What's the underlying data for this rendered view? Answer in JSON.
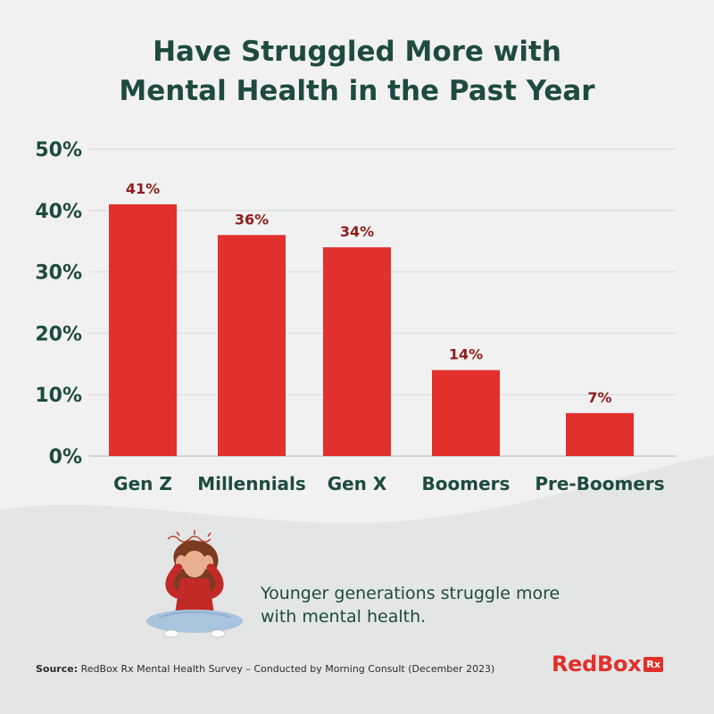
{
  "title_lines": [
    "Have Struggled More with",
    "Mental Health in the Past Year"
  ],
  "chart_data": {
    "type": "bar",
    "categories": [
      "Gen Z",
      "Millennials",
      "Gen X",
      "Boomers",
      "Pre-Boomers"
    ],
    "values": [
      41,
      36,
      34,
      14,
      7
    ],
    "data_labels": [
      "41%",
      "36%",
      "34%",
      "14%",
      "7%"
    ],
    "y_ticks": [
      0,
      10,
      20,
      30,
      40,
      50
    ],
    "y_tick_labels": [
      "0%",
      "10%",
      "20%",
      "30%",
      "40%",
      "50%"
    ],
    "ylim": [
      0,
      50
    ],
    "grid": true,
    "bar_color": "#e2302c",
    "label_color": "#8c1d1a",
    "axis_text_color": "#1e4a40"
  },
  "caption_lines": [
    "Younger generations struggle more",
    "with mental health."
  ],
  "source": {
    "label": "Source:",
    "text": " RedBox Rx Mental Health Survey – Conducted by Morning Consult (December 2023)"
  },
  "logo": {
    "text": "RedBox",
    "badge": "Rx"
  },
  "colors": {
    "background": "#f1f1f1",
    "wave": "#e3e6e5",
    "title": "#1e4a40",
    "accent": "#e2302c"
  }
}
